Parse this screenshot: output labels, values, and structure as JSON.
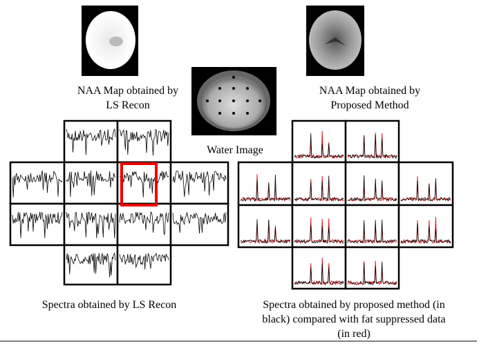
{
  "figure": {
    "naa_ls": {
      "caption": [
        "NAA Map obtained by",
        "LS Recon"
      ]
    },
    "naa_proposed": {
      "caption": [
        "NAA Map obtained by",
        "Proposed Method"
      ]
    },
    "water": {
      "caption": [
        "Water Image"
      ]
    },
    "spectra_ls": {
      "caption": [
        "Spectra obtained by LS Recon"
      ]
    },
    "spectra_proposed": {
      "caption": [
        "Spectra obtained by proposed method (in",
        "black) compared with fat suppressed data",
        "(in red)"
      ]
    }
  }
}
